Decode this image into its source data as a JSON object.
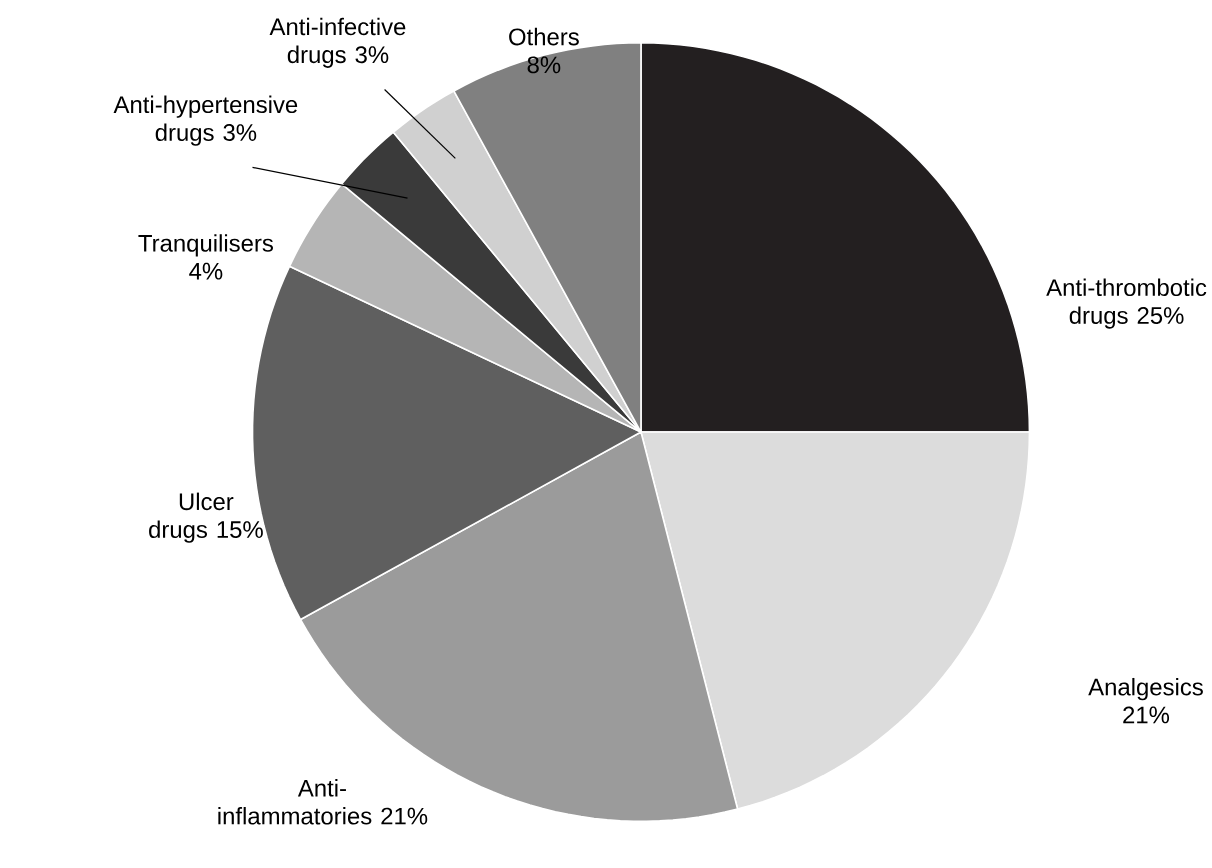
{
  "chart_data": {
    "type": "pie",
    "categories": [
      "Anti-thrombotic drugs",
      "Analgesics",
      "Anti-inflammatories",
      "Ulcer drugs",
      "Tranquilisers",
      "Anti-hypertensive drugs",
      "Anti-infective drugs",
      "Others"
    ],
    "values": [
      25,
      21,
      21,
      15,
      4,
      3,
      3,
      8
    ],
    "value_labels": [
      "25%",
      "21%",
      "21%",
      "15%",
      "4%",
      "3%",
      "3%",
      "8%"
    ],
    "colors": [
      "#231f20",
      "#dcdcdc",
      "#9b9b9b",
      "#5f5f5f",
      "#b5b5b5",
      "#3a3a3a",
      "#d0d0d0",
      "#808080"
    ]
  }
}
